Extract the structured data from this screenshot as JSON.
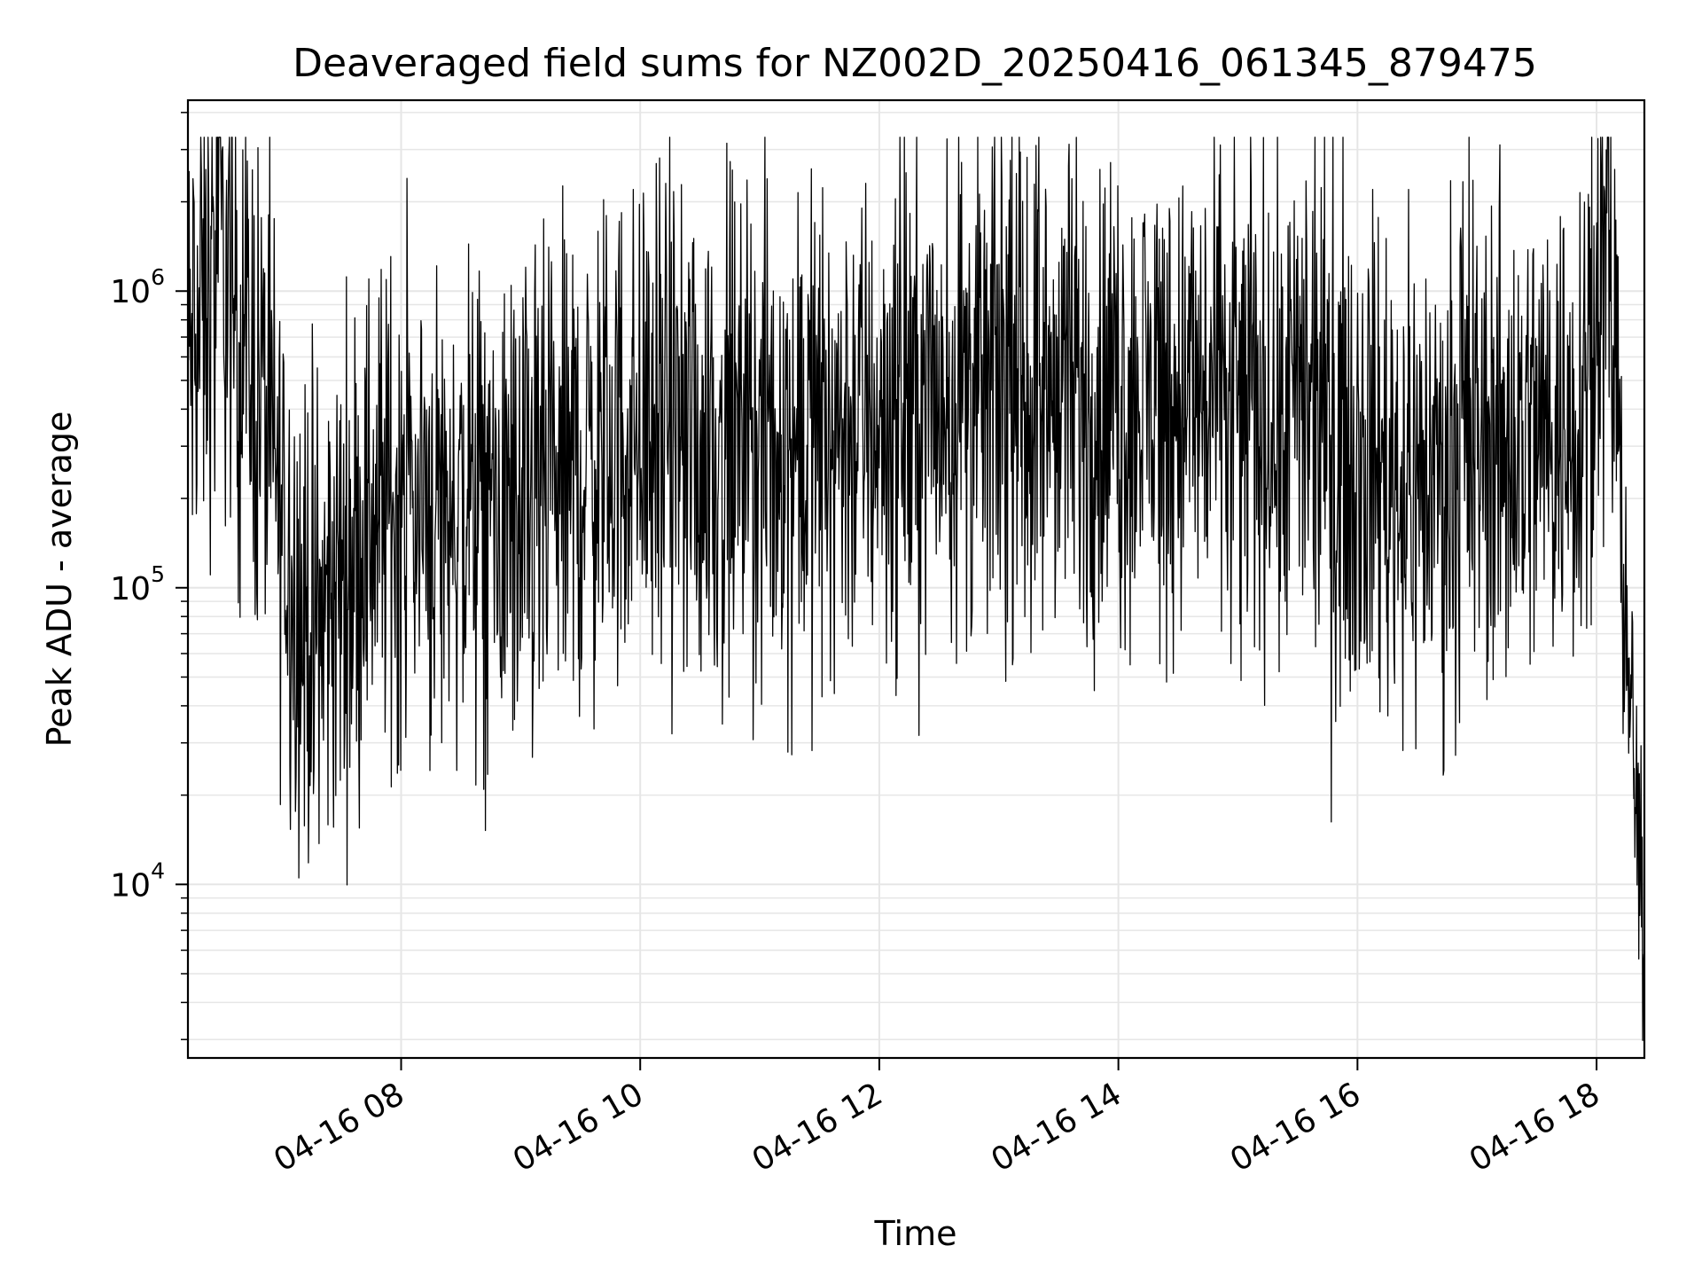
{
  "chart_data": {
    "type": "line",
    "title": "Deaveraged field sums for NZ002D_20250416_061345_879475",
    "xlabel": "Time",
    "ylabel": "Peak ADU - average",
    "yscale": "log",
    "ylim": [
      2600,
      4400000
    ],
    "xlim": [
      "2025-04-16 06:13",
      "2025-04-16 18:24"
    ],
    "x_ticks": [
      "04-16 08",
      "04-16 10",
      "04-16 12",
      "04-16 14",
      "04-16 16",
      "04-16 18"
    ],
    "y_ticks": [
      {
        "base": "10",
        "exp": "4",
        "value": 10000
      },
      {
        "base": "10",
        "exp": "5",
        "value": 100000
      },
      {
        "base": "10",
        "exp": "6",
        "value": 1000000
      }
    ],
    "grid": true,
    "line_color": "#000000",
    "grid_color": "#e6e6e6",
    "series": [
      {
        "x": [
          "2025-04-16 06:13",
          "2025-04-16 06:30",
          "2025-04-16 06:40",
          "2025-04-16 06:50",
          "2025-04-16 07:00",
          "2025-04-16 07:10",
          "2025-04-16 07:20",
          "2025-04-16 07:30",
          "2025-04-16 07:45",
          "2025-04-16 08:00",
          "2025-04-16 08:30",
          "2025-04-16 09:00",
          "2025-04-16 09:30",
          "2025-04-16 10:00",
          "2025-04-16 10:30",
          "2025-04-16 11:00",
          "2025-04-16 11:30",
          "2025-04-16 12:00",
          "2025-04-16 12:30",
          "2025-04-16 13:00",
          "2025-04-16 13:30",
          "2025-04-16 14:00",
          "2025-04-16 14:30",
          "2025-04-16 15:00",
          "2025-04-16 15:30",
          "2025-04-16 16:00",
          "2025-04-16 16:30",
          "2025-04-16 17:00",
          "2025-04-16 17:30",
          "2025-04-16 17:50",
          "2025-04-16 18:00",
          "2025-04-16 18:05",
          "2025-04-16 18:10",
          "2025-04-16 18:15",
          "2025-04-16 18:20",
          "2025-04-16 18:24"
        ],
        "y": [
          550000,
          1300000,
          700000,
          450000,
          180000,
          80000,
          70000,
          110000,
          180000,
          200000,
          180000,
          160000,
          250000,
          350000,
          300000,
          300000,
          330000,
          380000,
          450000,
          480000,
          420000,
          420000,
          450000,
          400000,
          380000,
          300000,
          220000,
          300000,
          330000,
          380000,
          1100000,
          1300000,
          500000,
          60000,
          20000,
          4000
        ]
      }
    ]
  }
}
